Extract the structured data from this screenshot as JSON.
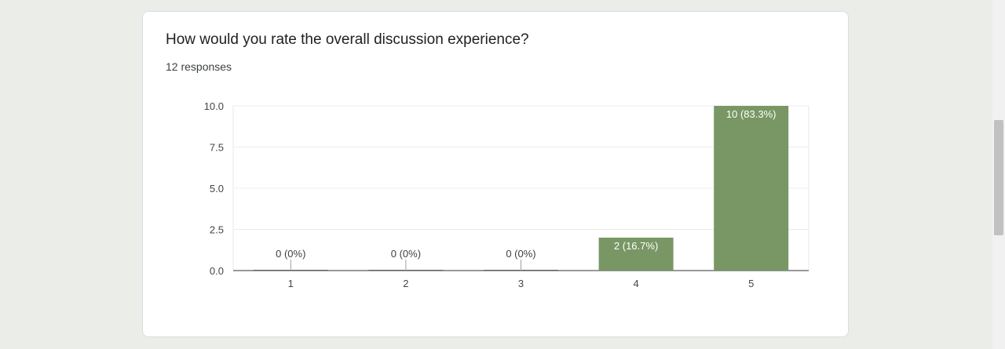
{
  "question": {
    "title": "How would you rate the overall discussion experience?",
    "responses": "12 responses"
  },
  "colors": {
    "bar": "#789764",
    "bar_label_inside": "#ffffff",
    "bar_label_outside": "#3c4043"
  },
  "chart_data": {
    "type": "bar",
    "categories": [
      "1",
      "2",
      "3",
      "4",
      "5"
    ],
    "values": [
      0,
      0,
      0,
      2,
      10
    ],
    "data_labels": [
      "0 (0%)",
      "0 (0%)",
      "0 (0%)",
      "2 (16.7%)",
      "10 (83.3%)"
    ],
    "y_ticks": [
      "0.0",
      "2.5",
      "5.0",
      "7.5",
      "10.0"
    ],
    "ylim": [
      0,
      10
    ],
    "grid": true,
    "legend": "none"
  }
}
